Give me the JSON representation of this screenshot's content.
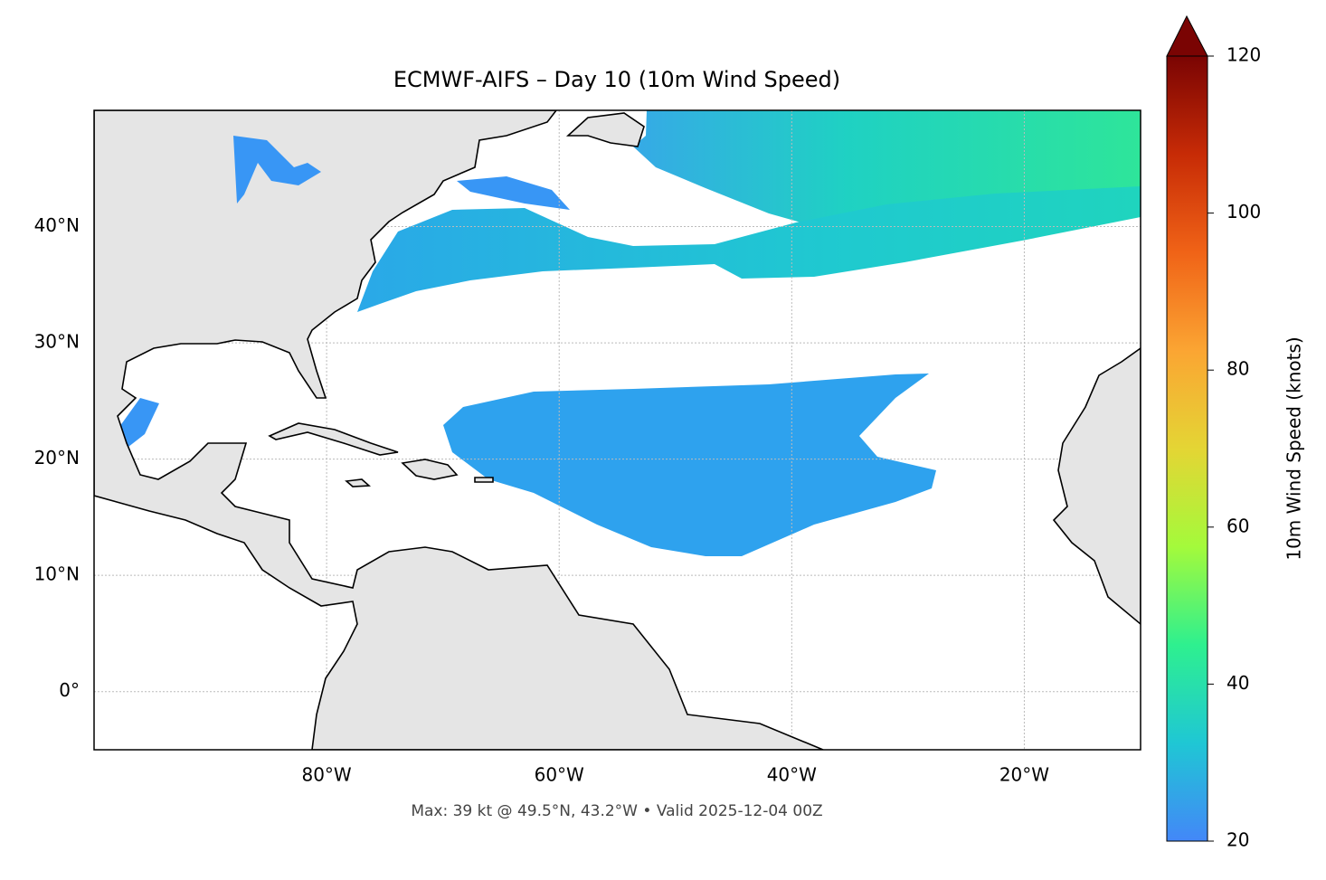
{
  "chart_data": {
    "type": "map",
    "title": "ECMWF-AIFS – Day 10 (10m Wind Speed)",
    "footer": "Max: 39 kt @ 49.5°N, 43.2°W • Valid 2025-12-04 00Z",
    "xlim": [
      -100,
      -10
    ],
    "ylim": [
      -5,
      50
    ],
    "xticks": [
      {
        "value": -80,
        "label": "80°W"
      },
      {
        "value": -60,
        "label": "60°W"
      },
      {
        "value": -40,
        "label": "40°W"
      },
      {
        "value": -20,
        "label": "20°W"
      }
    ],
    "yticks": [
      {
        "value": 0,
        "label": "0°"
      },
      {
        "value": 10,
        "label": "10°N"
      },
      {
        "value": 20,
        "label": "20°N"
      },
      {
        "value": 30,
        "label": "30°N"
      },
      {
        "value": 40,
        "label": "40°N"
      }
    ],
    "grid": true,
    "colorbar": {
      "label": "10m Wind Speed (knots)",
      "lim": [
        20,
        120
      ],
      "ticks": [
        20,
        40,
        60,
        80,
        100,
        120
      ],
      "colors": [
        "#4387f8",
        "#1fc7d4",
        "#2ef08f",
        "#a4fa3b",
        "#e4d534",
        "#fba533",
        "#f06317",
        "#c72b06",
        "#7a0403"
      ]
    }
  }
}
